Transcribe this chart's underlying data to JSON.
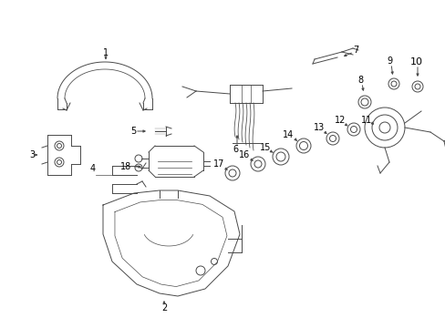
{
  "bg_color": "#ffffff",
  "line_color": "#4a4a4a",
  "text_color": "#000000",
  "fig_width": 4.89,
  "fig_height": 3.6,
  "dpi": 100
}
